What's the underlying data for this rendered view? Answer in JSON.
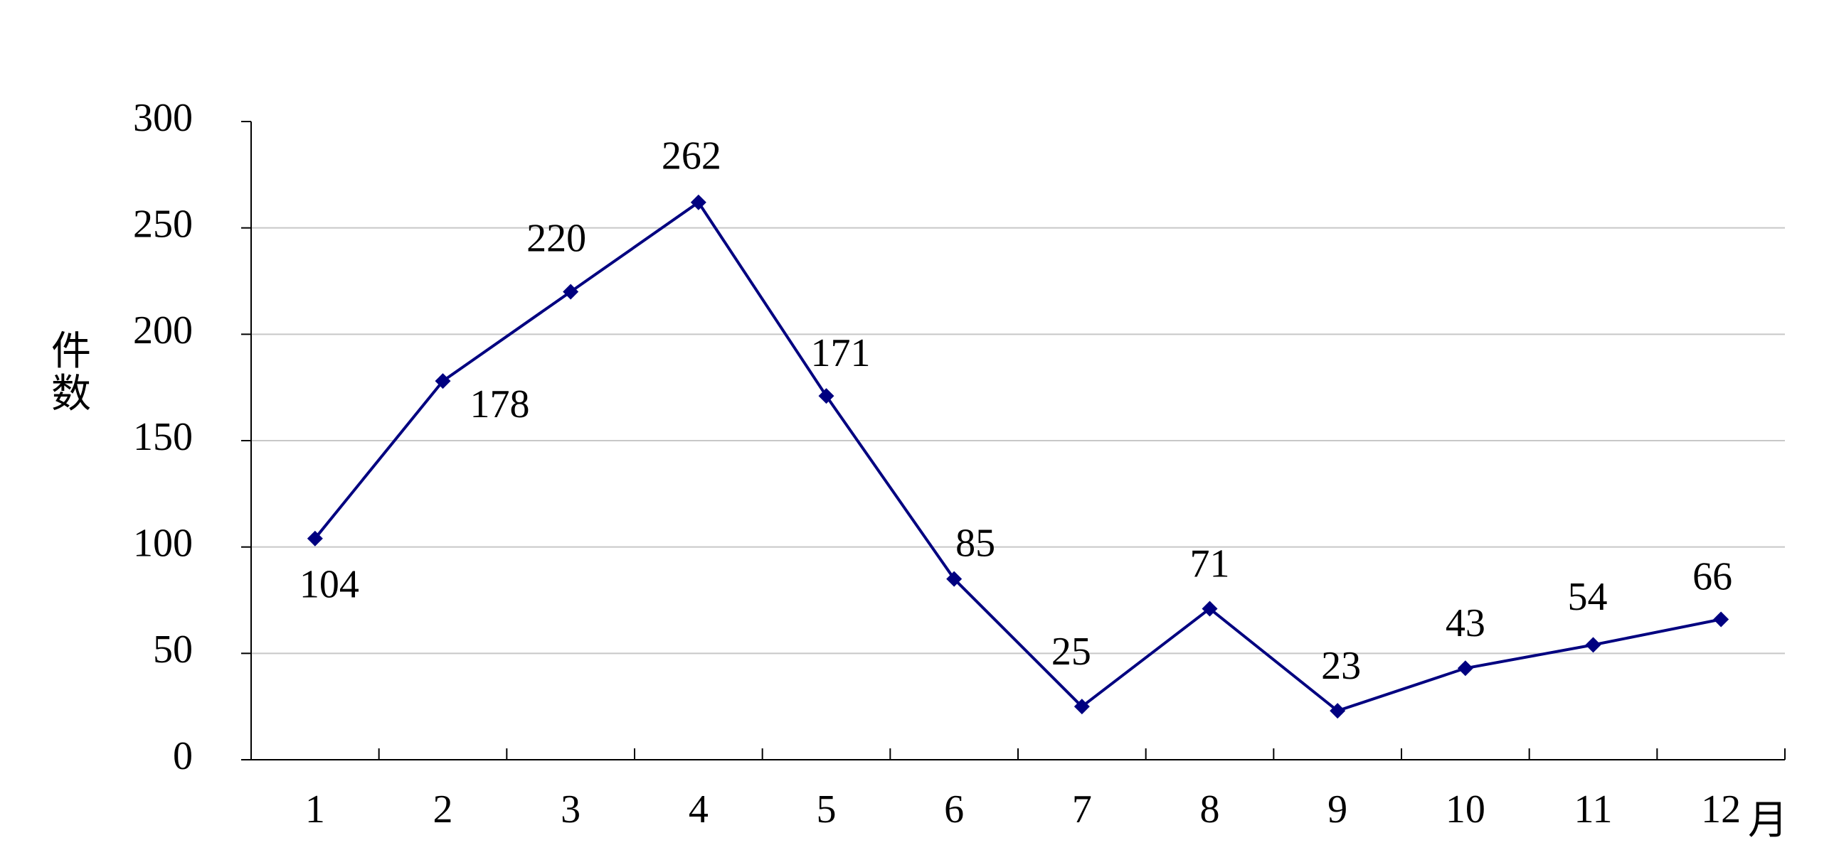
{
  "chart_data": {
    "type": "line",
    "y_label": "件数",
    "x_label": "月",
    "categories": [
      "1",
      "2",
      "3",
      "4",
      "5",
      "6",
      "7",
      "8",
      "9",
      "10",
      "11",
      "12"
    ],
    "series": [
      {
        "name": "件数",
        "color": "#000080",
        "values": [
          104,
          178,
          220,
          262,
          171,
          85,
          25,
          71,
          23,
          43,
          54,
          66
        ]
      }
    ],
    "ylim": [
      0,
      300
    ],
    "yticks": [
      0,
      50,
      100,
      150,
      200,
      250,
      300
    ],
    "grid": true
  }
}
